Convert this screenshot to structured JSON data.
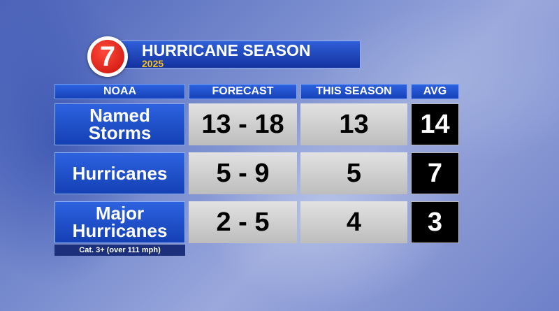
{
  "header": {
    "logo": "7",
    "title": "HURRICANE SEASON",
    "year": "2025"
  },
  "table": {
    "columns": [
      "NOAA",
      "FORECAST",
      "THIS SEASON",
      "AVG"
    ],
    "rows": [
      [
        "Named Storms",
        "13 - 18",
        13,
        14
      ],
      [
        "Hurricanes",
        "5 - 9",
        5,
        7
      ],
      [
        "Major Hurricanes",
        "2 - 5",
        4,
        3
      ]
    ],
    "note": "Cat. 3+ (over 111 mph)"
  }
}
